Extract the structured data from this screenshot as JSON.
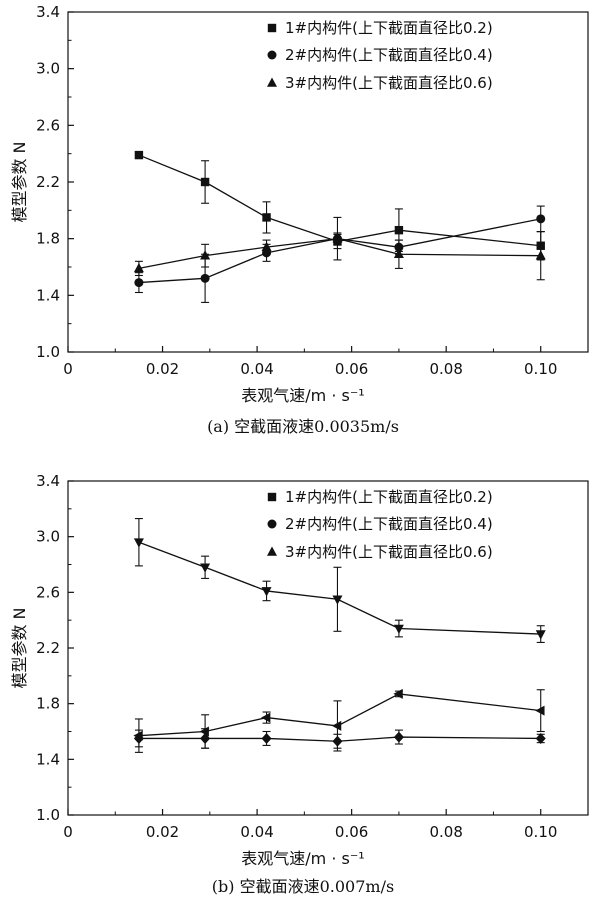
{
  "chart_data": [
    {
      "type": "line",
      "caption": "(a) 空截面液速0.0035m/s",
      "xlabel": "表观气速/m · s⁻¹",
      "ylabel": "模型参数 N",
      "xlim": [
        0,
        0.11
      ],
      "ylim": [
        1.0,
        3.4
      ],
      "x_ticks": [
        "0",
        "0.02",
        "0.04",
        "0.06",
        "0.08",
        "0.10"
      ],
      "y_ticks": [
        "1.0",
        "1.4",
        "1.8",
        "2.2",
        "2.6",
        "3.0",
        "3.4"
      ],
      "legend_position": "top-right",
      "x": [
        0.015,
        0.029,
        0.042,
        0.057,
        0.07,
        0.1
      ],
      "series": [
        {
          "name": "1#内构件(上下截面直径比0.2)",
          "marker": "square",
          "values": [
            2.39,
            2.2,
            1.95,
            1.78,
            1.86,
            1.75
          ],
          "err": [
            0,
            0.15,
            0.11,
            0.05,
            0.15,
            0.1
          ]
        },
        {
          "name": "2#内构件(上下截面直径比0.4)",
          "marker": "circle",
          "values": [
            1.49,
            1.52,
            1.7,
            1.8,
            1.74,
            1.94
          ],
          "err": [
            0.07,
            0.17,
            0.06,
            0.15,
            0.05,
            0.09
          ]
        },
        {
          "name": "3#内构件(上下截面直径比0.6)",
          "marker": "triangle-up",
          "values": [
            1.59,
            1.68,
            1.74,
            1.8,
            1.69,
            1.68
          ],
          "err": [
            0.05,
            0.08,
            0.05,
            0.04,
            0.1,
            0.17
          ]
        }
      ]
    },
    {
      "type": "line",
      "caption": "(b) 空截面液速0.007m/s",
      "xlabel": "表观气速/m · s⁻¹",
      "ylabel": "模型参数 N",
      "xlim": [
        0,
        0.11
      ],
      "ylim": [
        1.0,
        3.4
      ],
      "x_ticks": [
        "0",
        "0.02",
        "0.04",
        "0.06",
        "0.08",
        "0.10"
      ],
      "y_ticks": [
        "1.0",
        "1.4",
        "1.8",
        "2.2",
        "2.6",
        "3.0",
        "3.4"
      ],
      "legend_position": "top-right",
      "x": [
        0.015,
        0.029,
        0.042,
        0.057,
        0.07,
        0.1
      ],
      "legend_entries": [
        {
          "name": "1#内构件(上下截面直径比0.2)",
          "marker": "square"
        },
        {
          "name": "2#内构件(上下截面直径比0.4)",
          "marker": "circle"
        },
        {
          "name": "3#内构件(上下截面直径比0.6)",
          "marker": "triangle-up"
        }
      ],
      "series": [
        {
          "marker": "triangle-down",
          "values": [
            2.96,
            2.78,
            2.61,
            2.55,
            2.34,
            2.3
          ],
          "err": [
            0.17,
            0.08,
            0.07,
            0.23,
            0.06,
            0.06
          ]
        },
        {
          "marker": "triangle-left",
          "values": [
            1.57,
            1.6,
            1.7,
            1.64,
            1.87,
            1.75
          ],
          "err": [
            0.12,
            0.12,
            0.04,
            0.18,
            0.02,
            0.15
          ]
        },
        {
          "marker": "diamond",
          "values": [
            1.55,
            1.55,
            1.55,
            1.53,
            1.56,
            1.55
          ],
          "err": [
            0.06,
            0.07,
            0.05,
            0.05,
            0.05,
            0.03
          ]
        }
      ]
    }
  ]
}
